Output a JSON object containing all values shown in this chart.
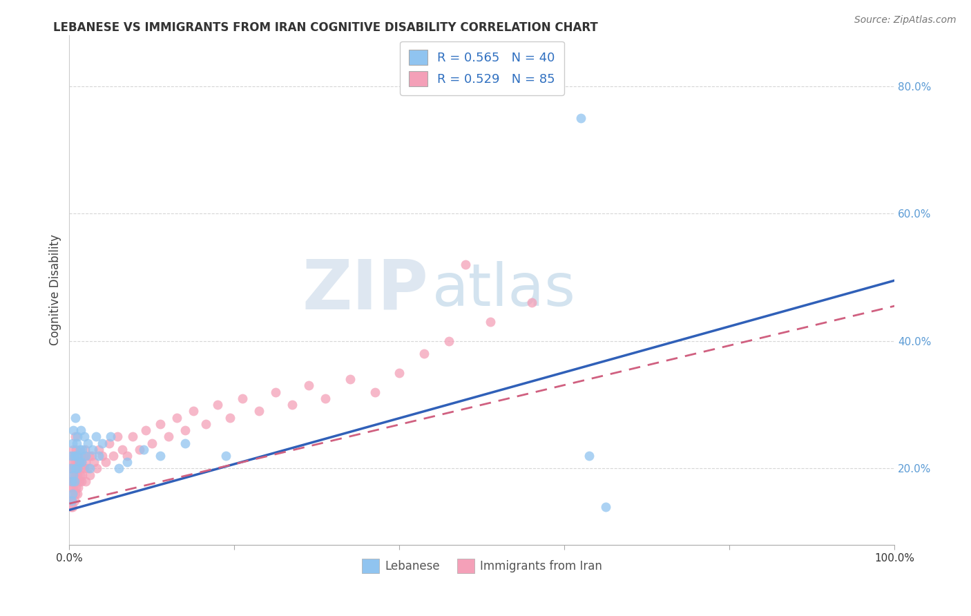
{
  "title": "LEBANESE VS IMMIGRANTS FROM IRAN COGNITIVE DISABILITY CORRELATION CHART",
  "source": "Source: ZipAtlas.com",
  "xlabel_left": "Lebanese",
  "xlabel_right": "Immigrants from Iran",
  "ylabel": "Cognitive Disability",
  "R_lebanese": 0.565,
  "N_lebanese": 40,
  "R_iran": 0.529,
  "N_iran": 85,
  "color_lebanese": "#90C4F0",
  "color_iran": "#F4A0B8",
  "line_color_lebanese": "#3060B8",
  "line_color_iran": "#D06080",
  "background_color": "#FFFFFF",
  "xlim": [
    0.0,
    1.0
  ],
  "ylim": [
    0.08,
    0.88
  ],
  "xticks": [
    0.0,
    0.2,
    0.4,
    0.6,
    0.8,
    1.0
  ],
  "yticks": [
    0.2,
    0.4,
    0.6,
    0.8
  ],
  "ytick_labels": [
    "20.0%",
    "40.0%",
    "60.0%",
    "80.0%"
  ],
  "xtick_labels": [
    "0.0%",
    "",
    "",
    "",
    "",
    "100.0%"
  ],
  "leb_line_x0": 0.0,
  "leb_line_y0": 0.135,
  "leb_line_x1": 1.0,
  "leb_line_y1": 0.495,
  "iran_line_x0": 0.0,
  "iran_line_y0": 0.145,
  "iran_line_x1": 1.0,
  "iran_line_y1": 0.455,
  "lebanese_x": [
    0.001,
    0.002,
    0.003,
    0.003,
    0.004,
    0.004,
    0.005,
    0.005,
    0.006,
    0.006,
    0.007,
    0.007,
    0.008,
    0.009,
    0.01,
    0.01,
    0.011,
    0.012,
    0.013,
    0.014,
    0.015,
    0.016,
    0.018,
    0.02,
    0.022,
    0.025,
    0.028,
    0.032,
    0.036,
    0.04,
    0.05,
    0.06,
    0.07,
    0.09,
    0.11,
    0.14,
    0.19,
    0.62,
    0.65,
    0.63
  ],
  "lebanese_y": [
    0.2,
    0.22,
    0.15,
    0.18,
    0.16,
    0.24,
    0.19,
    0.26,
    0.18,
    0.22,
    0.28,
    0.2,
    0.22,
    0.24,
    0.2,
    0.25,
    0.22,
    0.21,
    0.23,
    0.26,
    0.21,
    0.23,
    0.25,
    0.22,
    0.24,
    0.2,
    0.23,
    0.25,
    0.22,
    0.24,
    0.25,
    0.2,
    0.21,
    0.23,
    0.22,
    0.24,
    0.22,
    0.75,
    0.14,
    0.22
  ],
  "iran_x": [
    0.001,
    0.001,
    0.002,
    0.002,
    0.002,
    0.003,
    0.003,
    0.003,
    0.004,
    0.004,
    0.004,
    0.004,
    0.005,
    0.005,
    0.005,
    0.006,
    0.006,
    0.006,
    0.007,
    0.007,
    0.007,
    0.007,
    0.008,
    0.008,
    0.008,
    0.009,
    0.009,
    0.01,
    0.01,
    0.01,
    0.011,
    0.011,
    0.012,
    0.012,
    0.013,
    0.013,
    0.014,
    0.015,
    0.015,
    0.016,
    0.017,
    0.018,
    0.019,
    0.02,
    0.02,
    0.022,
    0.024,
    0.025,
    0.027,
    0.03,
    0.033,
    0.036,
    0.04,
    0.044,
    0.048,
    0.053,
    0.058,
    0.064,
    0.07,
    0.077,
    0.085,
    0.093,
    0.1,
    0.11,
    0.12,
    0.13,
    0.14,
    0.15,
    0.165,
    0.18,
    0.195,
    0.21,
    0.23,
    0.25,
    0.27,
    0.29,
    0.31,
    0.34,
    0.37,
    0.4,
    0.43,
    0.46,
    0.51,
    0.56,
    0.48
  ],
  "iran_y": [
    0.15,
    0.18,
    0.14,
    0.17,
    0.2,
    0.15,
    0.18,
    0.21,
    0.16,
    0.19,
    0.22,
    0.14,
    0.17,
    0.2,
    0.23,
    0.15,
    0.18,
    0.21,
    0.16,
    0.19,
    0.22,
    0.25,
    0.17,
    0.2,
    0.23,
    0.18,
    0.21,
    0.16,
    0.19,
    0.22,
    0.17,
    0.2,
    0.18,
    0.21,
    0.19,
    0.22,
    0.2,
    0.18,
    0.21,
    0.19,
    0.22,
    0.2,
    0.23,
    0.18,
    0.21,
    0.2,
    0.22,
    0.19,
    0.22,
    0.21,
    0.2,
    0.23,
    0.22,
    0.21,
    0.24,
    0.22,
    0.25,
    0.23,
    0.22,
    0.25,
    0.23,
    0.26,
    0.24,
    0.27,
    0.25,
    0.28,
    0.26,
    0.29,
    0.27,
    0.3,
    0.28,
    0.31,
    0.29,
    0.32,
    0.3,
    0.33,
    0.31,
    0.34,
    0.32,
    0.35,
    0.38,
    0.4,
    0.43,
    0.46,
    0.52
  ]
}
